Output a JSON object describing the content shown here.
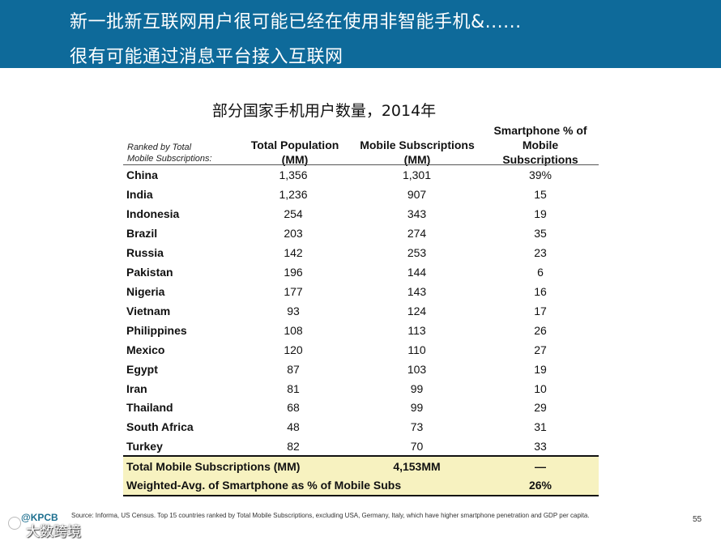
{
  "header": {
    "line1": "新一批新互联网用户很可能已经在使用非智能手机&......",
    "line2": "很有可能通过消息平台接入互联网"
  },
  "table": {
    "title": "部分国家手机用户数量，2014年",
    "rank_note": [
      "Ranked by Total",
      "Mobile Subscriptions:"
    ],
    "columns": [
      [
        "Total Population",
        "(MM)"
      ],
      [
        "Mobile Subscriptions",
        "(MM)"
      ],
      [
        "Smartphone % of",
        "Mobile",
        "Subscriptions"
      ]
    ],
    "rows": [
      {
        "country": "China",
        "population": "1,356",
        "subscriptions": "1,301",
        "smartphone_pct": "39%"
      },
      {
        "country": "India",
        "population": "1,236",
        "subscriptions": "907",
        "smartphone_pct": "15"
      },
      {
        "country": "Indonesia",
        "population": "254",
        "subscriptions": "343",
        "smartphone_pct": "19"
      },
      {
        "country": "Brazil",
        "population": "203",
        "subscriptions": "274",
        "smartphone_pct": "35"
      },
      {
        "country": "Russia",
        "population": "142",
        "subscriptions": "253",
        "smartphone_pct": "23"
      },
      {
        "country": "Pakistan",
        "population": "196",
        "subscriptions": "144",
        "smartphone_pct": "6"
      },
      {
        "country": "Nigeria",
        "population": "177",
        "subscriptions": "143",
        "smartphone_pct": "16"
      },
      {
        "country": "Vietnam",
        "population": "93",
        "subscriptions": "124",
        "smartphone_pct": "17"
      },
      {
        "country": "Philippines",
        "population": "108",
        "subscriptions": "113",
        "smartphone_pct": "26"
      },
      {
        "country": "Mexico",
        "population": "120",
        "subscriptions": "110",
        "smartphone_pct": "27"
      },
      {
        "country": "Egypt",
        "population": "87",
        "subscriptions": "103",
        "smartphone_pct": "19"
      },
      {
        "country": "Iran",
        "population": "81",
        "subscriptions": "99",
        "smartphone_pct": "10"
      },
      {
        "country": "Thailand",
        "population": "68",
        "subscriptions": "99",
        "smartphone_pct": "29"
      },
      {
        "country": "South Africa",
        "population": "48",
        "subscriptions": "73",
        "smartphone_pct": "31"
      },
      {
        "country": "Turkey",
        "population": "82",
        "subscriptions": "70",
        "smartphone_pct": "33"
      }
    ],
    "summary": [
      {
        "label": "Total Mobile Subscriptions (MM)",
        "subscriptions": "4,153MM",
        "smartphone_pct": "—"
      },
      {
        "label": "Weighted-Avg. of Smartphone as % of Mobile Subs",
        "subscriptions": "",
        "smartphone_pct": "26%"
      }
    ]
  },
  "footer": {
    "source": "Source: Informa, US Census. Top 15 countries ranked by Total Mobile Subscriptions, excluding USA, Germany, Italy, which have higher smartphone penetration and GDP per capita.",
    "page_number": "55",
    "logo_text": "@KPCB",
    "watermark": "大数跨境"
  },
  "colors": {
    "header_band": "#0e6a9a",
    "summary_highlight": "#f7f2c0"
  }
}
